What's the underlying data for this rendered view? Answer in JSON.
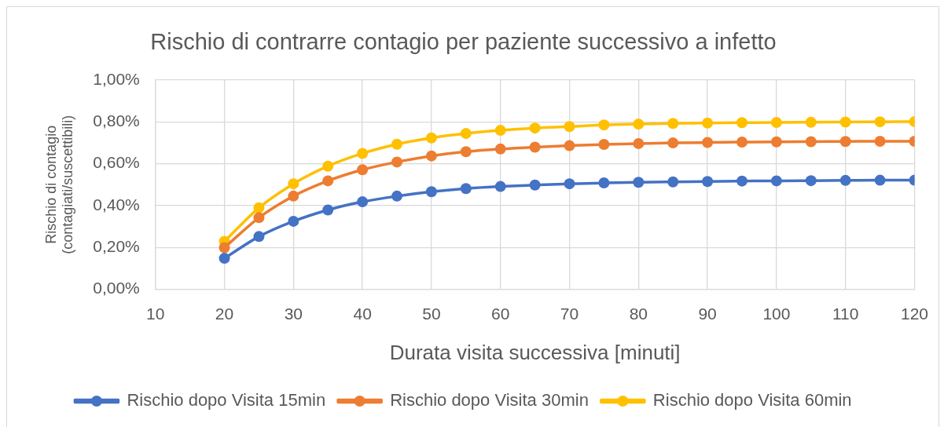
{
  "chart_data": {
    "type": "line",
    "title": "Rischio di contrarre contagio per paziente successivo a infetto",
    "xlabel": "Durata visita successiva [minuti]",
    "ylabel": "Rischio di contagio (contagiati/suscettibili)",
    "x": [
      20,
      25,
      30,
      35,
      40,
      45,
      50,
      55,
      60,
      65,
      70,
      75,
      80,
      85,
      90,
      95,
      100,
      105,
      110,
      115,
      120
    ],
    "series": [
      {
        "name": "Rischio dopo Visita 15min",
        "color": "#4472c4",
        "values": [
          0.148,
          0.252,
          0.325,
          0.379,
          0.418,
          0.445,
          0.466,
          0.481,
          0.491,
          0.498,
          0.504,
          0.508,
          0.511,
          0.513,
          0.515,
          0.517,
          0.518,
          0.519,
          0.52,
          0.521,
          0.521
        ]
      },
      {
        "name": "Rischio dopo Visita 30min",
        "color": "#ed7d31",
        "values": [
          0.199,
          0.342,
          0.445,
          0.518,
          0.571,
          0.608,
          0.637,
          0.657,
          0.67,
          0.679,
          0.686,
          0.692,
          0.696,
          0.699,
          0.701,
          0.703,
          0.704,
          0.705,
          0.706,
          0.707,
          0.707
        ]
      },
      {
        "name": "Rischio dopo Visita 60min",
        "color": "#ffc000",
        "values": [
          0.229,
          0.389,
          0.504,
          0.588,
          0.649,
          0.693,
          0.723,
          0.744,
          0.759,
          0.77,
          0.777,
          0.785,
          0.789,
          0.792,
          0.794,
          0.796,
          0.797,
          0.798,
          0.799,
          0.8,
          0.801
        ]
      }
    ],
    "xlim": [
      10,
      120
    ],
    "xticks": [
      10,
      20,
      30,
      40,
      50,
      60,
      70,
      80,
      90,
      100,
      110,
      120
    ],
    "ylim": [
      0,
      1
    ],
    "yticks": [
      {
        "value": 0,
        "label": "0,00%"
      },
      {
        "value": 0.2,
        "label": "0,20%"
      },
      {
        "value": 0.4,
        "label": "0,40%"
      },
      {
        "value": 0.6,
        "label": "0,60%"
      },
      {
        "value": 0.8,
        "label": "0,80%"
      },
      {
        "value": 1,
        "label": "1,00%"
      }
    ],
    "grid": true,
    "legend": "bottom",
    "marker": "circle",
    "line_style": "solid"
  }
}
